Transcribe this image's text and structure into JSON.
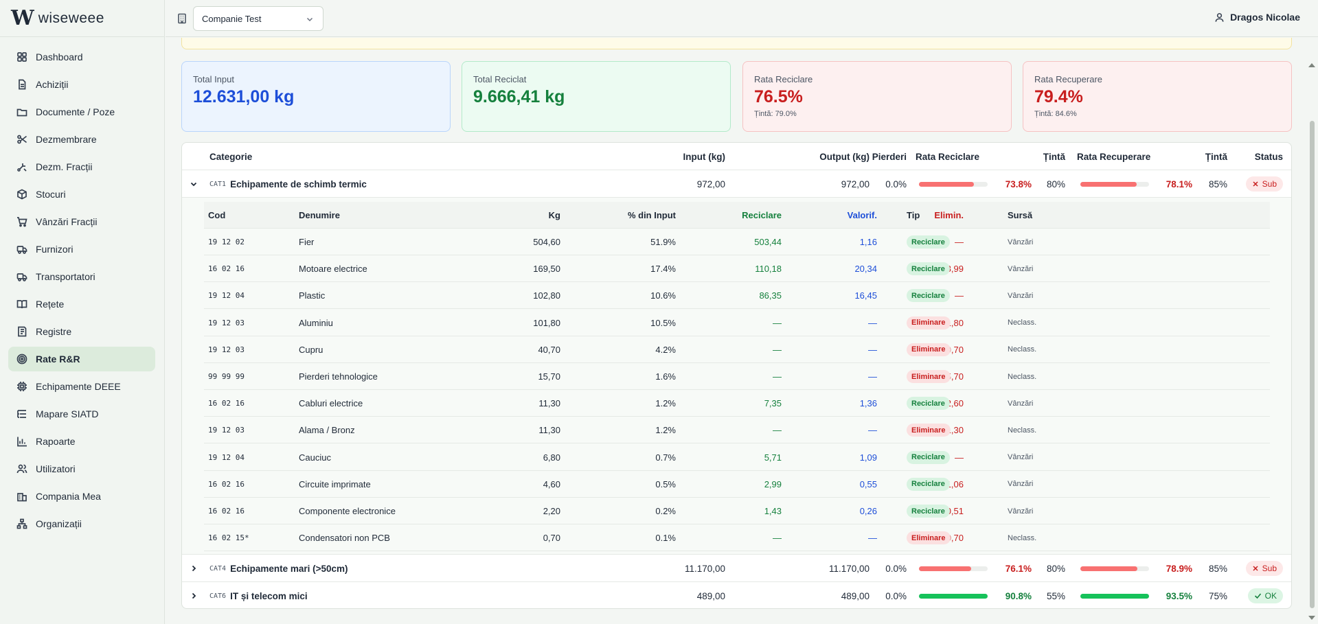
{
  "brand": {
    "logo": "W",
    "name": "wiseweee"
  },
  "sidebar": {
    "items": [
      {
        "label": "Dashboard",
        "icon": "dashboard-icon"
      },
      {
        "label": "Achiziții",
        "icon": "document-icon"
      },
      {
        "label": "Documente / Poze",
        "icon": "folder-icon"
      },
      {
        "label": "Dezmembrare",
        "icon": "scissors-icon"
      },
      {
        "label": "Dezm. Fracții",
        "icon": "split-icon"
      },
      {
        "label": "Stocuri",
        "icon": "box-icon"
      },
      {
        "label": "Vânzări Fracții",
        "icon": "cart-icon"
      },
      {
        "label": "Furnizori",
        "icon": "truck-icon"
      },
      {
        "label": "Transportatori",
        "icon": "truck-icon"
      },
      {
        "label": "Rețete",
        "icon": "book-icon"
      },
      {
        "label": "Registre",
        "icon": "register-icon"
      },
      {
        "label": "Rate R&R",
        "icon": "target-icon",
        "active": true
      },
      {
        "label": "Echipamente DEEE",
        "icon": "chip-icon"
      },
      {
        "label": "Mapare SIATD",
        "icon": "list-tree-icon"
      },
      {
        "label": "Rapoarte",
        "icon": "bar-chart-icon"
      },
      {
        "label": "Utilizatori",
        "icon": "users-icon"
      },
      {
        "label": "Compania Mea",
        "icon": "building-icon"
      },
      {
        "label": "Organizații",
        "icon": "network-icon"
      }
    ]
  },
  "topbar": {
    "company": "Companie Test",
    "user": "Dragos Nicolae"
  },
  "cards": {
    "input": {
      "label": "Total Input",
      "value": "12.631,00 kg"
    },
    "reciclat": {
      "label": "Total Reciclat",
      "value": "9.666,41 kg"
    },
    "rata_reciclare": {
      "label": "Rata Reciclare",
      "value": "76.5%",
      "sub": "Țintă: 79.0%"
    },
    "rata_recuperare": {
      "label": "Rata Recuperare",
      "value": "79.4%",
      "sub": "Țintă: 84.6%"
    }
  },
  "table": {
    "headers": {
      "categorie": "Categorie",
      "input": "Input (kg)",
      "output": "Output (kg)",
      "pierderi": "Pierderi",
      "rata_reciclare": "Rata Reciclare",
      "tinta1": "Țintă",
      "rata_recuperare": "Rata Recuperare",
      "tinta2": "Țintă",
      "status": "Status"
    },
    "categories": [
      {
        "code": "CAT1",
        "name": "Echipamente de schimb termic",
        "input": "972,00",
        "output": "972,00",
        "pierderi": "0.0%",
        "rr_val": "73.8%",
        "rr_fill": 0.8,
        "rr_color": "#f87171",
        "tinta1": "80%",
        "rc_val": "78.1%",
        "rc_fill": 0.82,
        "rc_color": "#f87171",
        "tinta2": "85%",
        "status": "Sub",
        "status_type": "sub",
        "status_icon": "x-icon"
      },
      {
        "code": "CAT4",
        "name": "Echipamente mari (>50cm)",
        "input": "11.170,00",
        "output": "11.170,00",
        "pierderi": "0.0%",
        "rr_val": "76.1%",
        "rr_fill": 0.76,
        "rr_color": "#f87171",
        "tinta1": "80%",
        "rc_val": "78.9%",
        "rc_fill": 0.83,
        "rc_color": "#f87171",
        "tinta2": "85%",
        "status": "Sub",
        "status_type": "sub",
        "status_icon": "x-icon"
      },
      {
        "code": "CAT6",
        "name": "IT și telecom mici",
        "input": "489,00",
        "output": "489,00",
        "pierderi": "0.0%",
        "rr_val": "90.8%",
        "rr_fill": 1.0,
        "rr_color": "#16c25a",
        "tinta1": "55%",
        "rc_val": "93.5%",
        "rc_fill": 1.0,
        "rc_color": "#16c25a",
        "tinta2": "75%",
        "status": "OK",
        "status_type": "ok",
        "status_icon": "check-icon"
      }
    ],
    "detail_headers": {
      "cod": "Cod",
      "denumire": "Denumire",
      "kg": "Kg",
      "pct": "% din Input",
      "reciclare": "Reciclare",
      "valorif": "Valorif.",
      "elimin": "Elimin.",
      "tip": "Tip",
      "sursa": "Sursă"
    },
    "detail_rows": [
      {
        "cod": "19 12 02",
        "den": "Fier",
        "kg": "504,60",
        "pct": "51.9%",
        "rec": "503,44",
        "val": "1,16",
        "elim": "—",
        "tip": "Reciclare",
        "tipc": "rec",
        "src": "Vânzări"
      },
      {
        "cod": "16 02 16",
        "den": "Motoare electrice",
        "kg": "169,50",
        "pct": "17.4%",
        "rec": "110,18",
        "val": "20,34",
        "elim": "38,99",
        "tip": "Reciclare",
        "tipc": "rec",
        "src": "Vânzări"
      },
      {
        "cod": "19 12 04",
        "den": "Plastic",
        "kg": "102,80",
        "pct": "10.6%",
        "rec": "86,35",
        "val": "16,45",
        "elim": "—",
        "tip": "Reciclare",
        "tipc": "rec",
        "src": "Vânzări"
      },
      {
        "cod": "19 12 03",
        "den": "Aluminiu",
        "kg": "101,80",
        "pct": "10.5%",
        "rec": "—",
        "val": "—",
        "elim": "101,80",
        "tip": "Eliminare",
        "tipc": "elim",
        "src": "Neclass."
      },
      {
        "cod": "19 12 03",
        "den": "Cupru",
        "kg": "40,70",
        "pct": "4.2%",
        "rec": "—",
        "val": "—",
        "elim": "40,70",
        "tip": "Eliminare",
        "tipc": "elim",
        "src": "Neclass."
      },
      {
        "cod": "99 99 99",
        "den": "Pierderi tehnologice",
        "kg": "15,70",
        "pct": "1.6%",
        "rec": "—",
        "val": "—",
        "elim": "15,70",
        "tip": "Eliminare",
        "tipc": "elim",
        "src": "Neclass."
      },
      {
        "cod": "16 02 16",
        "den": "Cabluri electrice",
        "kg": "11,30",
        "pct": "1.2%",
        "rec": "7,35",
        "val": "1,36",
        "elim": "2,60",
        "tip": "Reciclare",
        "tipc": "rec",
        "src": "Vânzări"
      },
      {
        "cod": "19 12 03",
        "den": "Alama / Bronz",
        "kg": "11,30",
        "pct": "1.2%",
        "rec": "—",
        "val": "—",
        "elim": "11,30",
        "tip": "Eliminare",
        "tipc": "elim",
        "src": "Neclass."
      },
      {
        "cod": "19 12 04",
        "den": "Cauciuc",
        "kg": "6,80",
        "pct": "0.7%",
        "rec": "5,71",
        "val": "1,09",
        "elim": "—",
        "tip": "Reciclare",
        "tipc": "rec",
        "src": "Vânzări"
      },
      {
        "cod": "16 02 16",
        "den": "Circuite imprimate",
        "kg": "4,60",
        "pct": "0.5%",
        "rec": "2,99",
        "val": "0,55",
        "elim": "1,06",
        "tip": "Reciclare",
        "tipc": "rec",
        "src": "Vânzări"
      },
      {
        "cod": "16 02 16",
        "den": "Componente electronice",
        "kg": "2,20",
        "pct": "0.2%",
        "rec": "1,43",
        "val": "0,26",
        "elim": "0,51",
        "tip": "Reciclare",
        "tipc": "rec",
        "src": "Vânzări"
      },
      {
        "cod": "16 02 15*",
        "den": "Condensatori non PCB",
        "kg": "0,70",
        "pct": "0.1%",
        "rec": "—",
        "val": "—",
        "elim": "0,70",
        "tip": "Eliminare",
        "tipc": "elim",
        "src": "Neclass."
      }
    ]
  }
}
